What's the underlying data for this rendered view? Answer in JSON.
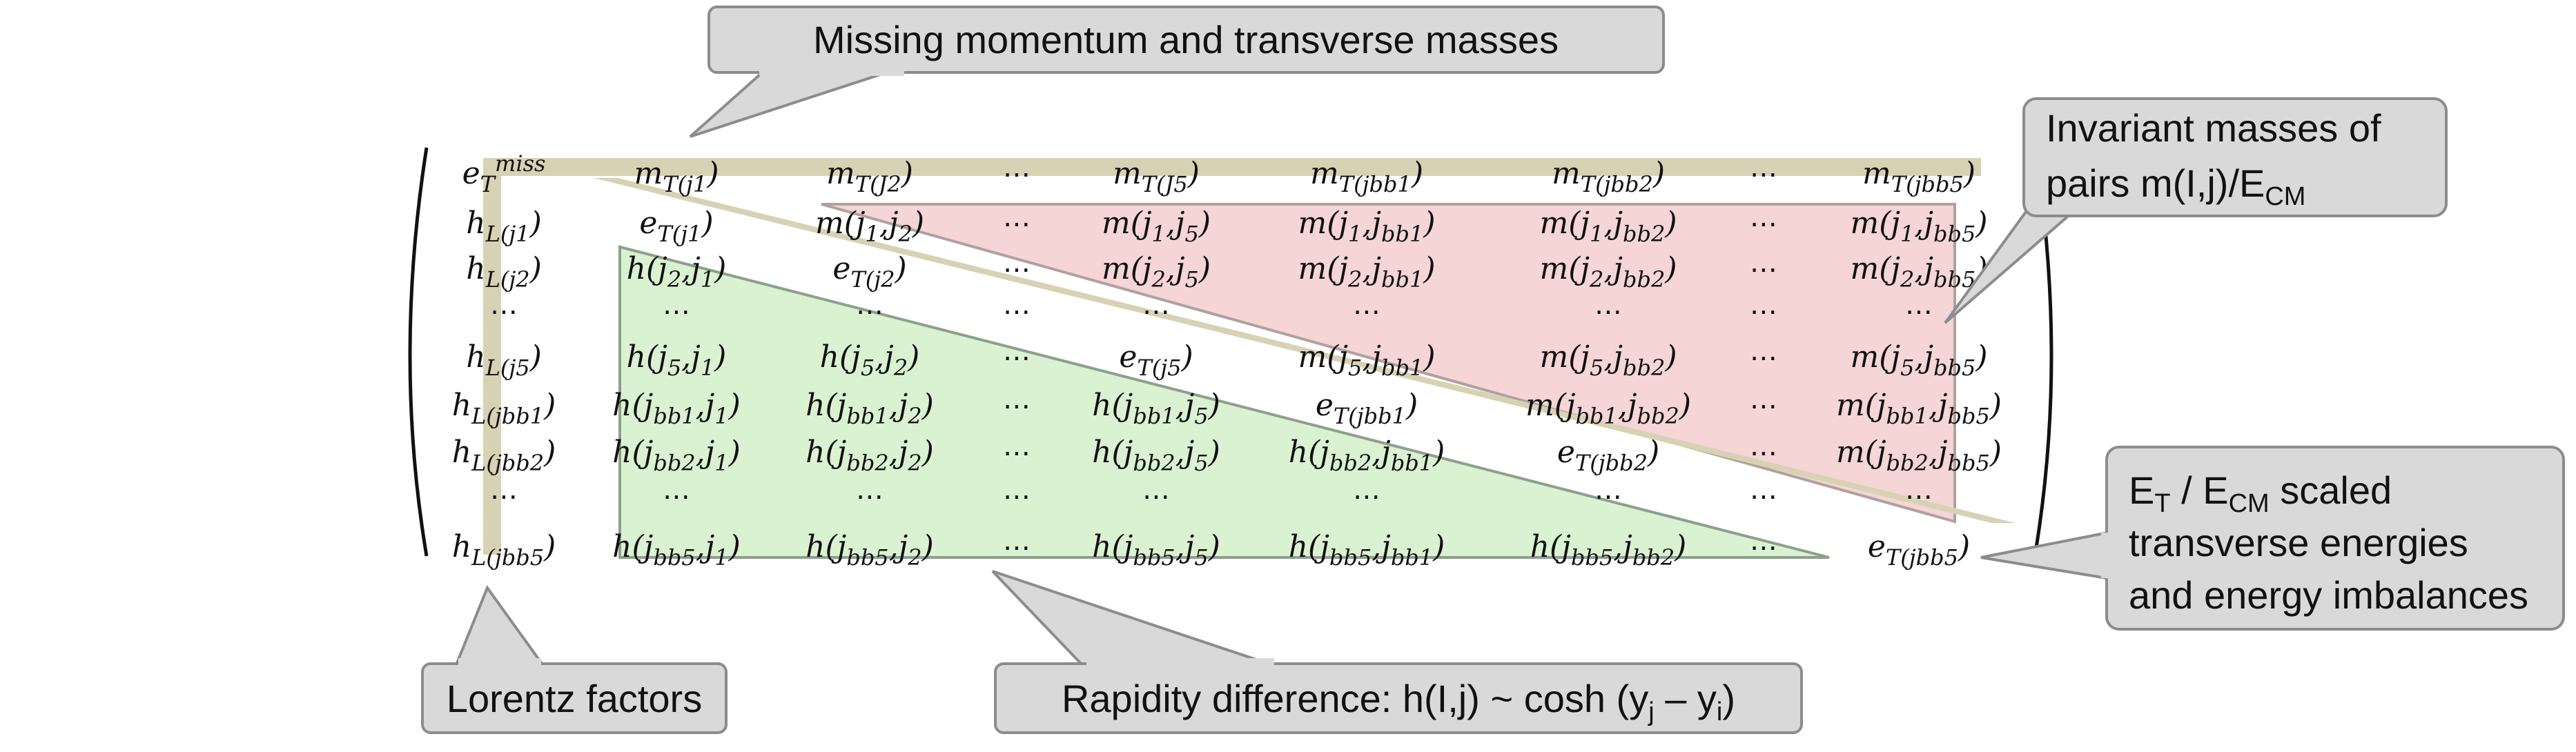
{
  "matrix": {
    "rows": [
      [
        "e_T^miss",
        "m_T(j1)",
        "m_T(J_2)",
        "...",
        "m_T(J_5)",
        "m_T(j_bb1)",
        "m_T(j_bb2)",
        "...",
        "m_T(j_bb5)"
      ],
      [
        "h_L(j_1)",
        "e_T(j_1)",
        "m(j_1,j_2)",
        "...",
        "m(j_1,j_5)",
        "m(j_1,j_bb1)",
        "m(j_1,j_bb2)",
        "...",
        "m(j_1,j_bb5)"
      ],
      [
        "h_L(j_2)",
        "h(j_2,j_1)",
        "e_T(j_2)",
        "...",
        "m(j_2,j_5)",
        "m(j_2,j_bb1)",
        "m(j_2,j_bb2)",
        "...",
        "m(j_2,j_bb5)"
      ],
      [
        "...",
        "...",
        "...",
        "...",
        "...",
        "...",
        "...",
        "...",
        "..."
      ],
      [
        "h_L(j_5)",
        "h(j_5,j_1)",
        "h(j_5,j_2)",
        "...",
        "e_T(j_5)",
        "m(j_5,j_bb1)",
        "m(j_5,j_bb2)",
        "...",
        "m(j_5,j_bb5)"
      ],
      [
        "h_L(j_bb1)",
        "h(j_bb1,j_1)",
        "h(j_bb1,j_2)",
        "...",
        "h(j_bb1,j_5)",
        "e_T(j_bb1)",
        "m(j_bb1,j_bb2)",
        "...",
        "m(j_bb1,j_bb5)"
      ],
      [
        "h_L(j_bb2)",
        "h(j_bb2,j_1)",
        "h(j_bb2,j_2)",
        "...",
        "h(j_bb2,j_5)",
        "h(j_bb2,j_bb1)",
        "e_T(j_bb2)",
        "...",
        "m(j_bb2,j_bb5)"
      ],
      [
        "...",
        "...",
        "...",
        "...",
        "...",
        "...",
        "...",
        "...",
        "..."
      ],
      [
        "h_L(j_bb5)",
        "h(j_bb5,j_1)",
        "h(j_bb5,j_2)",
        "...",
        "h(j_bb5,j_5)",
        "h(j_bb5,j_bb1)",
        "h(j_bb5,j_bb2)",
        "...",
        "e_T(j_bb5)"
      ]
    ]
  },
  "callouts": {
    "missing": "Missing momentum and transverse masses",
    "invariant_line1": "Invariant masses of",
    "invariant_line2": "pairs m(I,j)/E",
    "invariant_sub": "CM",
    "et_main": "E",
    "et_sub1": "T",
    "et_mid": " / E",
    "et_sub2": "CM",
    "et_rest": " scaled",
    "et_line2": "transverse energies",
    "et_line3": "and energy imbalances",
    "lorentz": "Lorentz factors",
    "rapidity_pre": "Rapidity difference: h(I,j) ~ cosh (y",
    "rapidity_sub_j": "j",
    "rapidity_mid": " – y",
    "rapidity_sub_i": "i",
    "rapidity_post": ")"
  },
  "colors": {
    "band": "#d8d2b4",
    "pink": "#f5d5d5",
    "green": "#dbf2d2",
    "callout_fill": "#d9d9d9",
    "callout_stroke": "#8c8c8c"
  }
}
